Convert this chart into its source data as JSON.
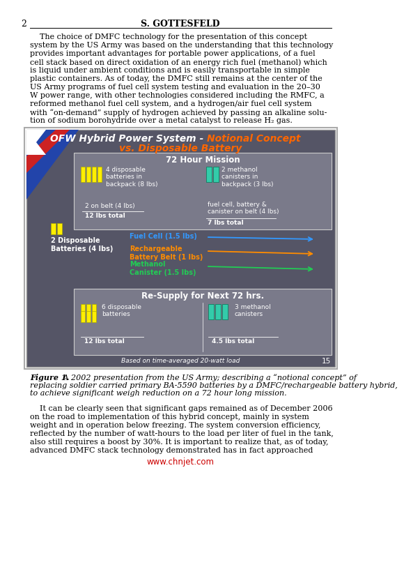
{
  "page_number": "2",
  "header_author": "S. GOTTESFELD",
  "background_color": "#ffffff",
  "para1_lines": [
    "    The choice of DMFC technology for the presentation of this concept",
    "system by the US Army was based on the understanding that this technology",
    "provides important advantages for portable power applications, of a fuel",
    "cell stack based on direct oxidation of an energy rich fuel (methanol) which",
    "is liquid under ambient conditions and is easily transportable in simple",
    "plastic containers. As of today, the DMFC still remains at the center of the",
    "US Army programs of fuel cell system testing and evaluation in the 20–30",
    "W power range, with other technologies considered including the RMFC, a",
    "reformed methanol fuel cell system, and a hydrogen/air fuel cell system",
    "with “on-demand” supply of hydrogen achieved by passing an alkaline solu-",
    "tion of sodium borohydride over a metal catalyst to release H₂ gas."
  ],
  "fig_title_part1": "OFW Hybrid Power System - Notional Concept",
  "fig_title_part1_normal": "OFW Hybrid Power System - ",
  "fig_title_part1_italic_orange": "Notional Concept",
  "fig_title_part2": "vs. Disposable Battery",
  "section72_text": "72 Hour Mission",
  "resupply_text": "Re-Supply for Next 72 hrs.",
  "footnote_text": "Based on time-averaged 20-watt load",
  "page_num_fig": "15",
  "caption_bold": "Figure 1.",
  "caption_lines": [
    " A 2002 presentation from the US Army; describing a “notional concept” of",
    "replacing soldier carried primary BA-5590 batteries by a DMFC/rechargeable battery hybrid,",
    "to achieve significant weigh reduction on a 72 hour long mission."
  ],
  "para2_lines": [
    "    It can be clearly seen that significant gaps remained as of December 2006",
    "on the road to implementation of this hybrid concept, mainly in system",
    "weight and in operation below freezing. The system conversion efficiency,",
    "reflected by the number of watt-hours to the load per liter of fuel in the tank,",
    "also still requires a boost by 30%. It is important to realize that, as of today,",
    "advanced DMFC stack technology demonstrated has in fact approached"
  ],
  "watermark": "www.chnjet.com",
  "watermark_color": "#cc0000",
  "fig_bg_color": "#555566",
  "box_bg_color": "#7a7a8a",
  "yellow_bat_color": "#ffee00",
  "green_can_color": "#33ccaa",
  "blue_arrow_color": "#3399ff",
  "orange_arrow_color": "#ff8c00",
  "green_arrow_color": "#22cc55",
  "title_white": "#ffffff",
  "title_orange": "#ff6600"
}
